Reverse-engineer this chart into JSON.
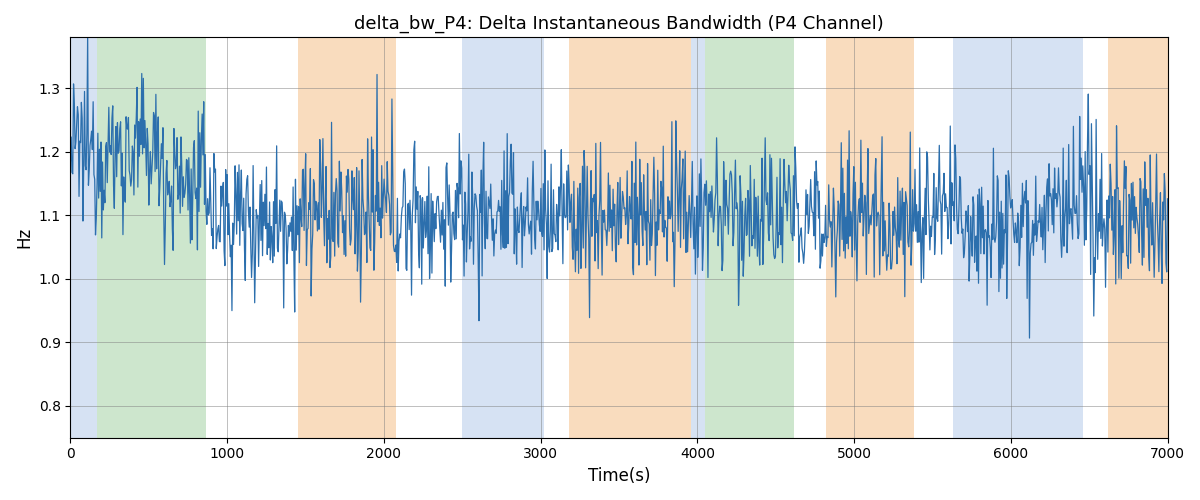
{
  "title": "delta_bw_P4: Delta Instantaneous Bandwidth (P4 Channel)",
  "xlabel": "Time(s)",
  "ylabel": "Hz",
  "xlim": [
    0,
    7000
  ],
  "ylim": [
    0.75,
    1.38
  ],
  "line_color": "#2c6fad",
  "line_width": 0.9,
  "grid": true,
  "background_color": "#ffffff",
  "seed": 12345,
  "colored_bands": [
    {
      "xmin": 0,
      "xmax": 168,
      "color": "#aec6e8",
      "alpha": 0.5
    },
    {
      "xmin": 168,
      "xmax": 868,
      "color": "#90c990",
      "alpha": 0.45
    },
    {
      "xmin": 1450,
      "xmax": 2080,
      "color": "#f5c08a",
      "alpha": 0.55
    },
    {
      "xmin": 2500,
      "xmax": 3020,
      "color": "#aec6e8",
      "alpha": 0.5
    },
    {
      "xmin": 3180,
      "xmax": 3960,
      "color": "#f5c08a",
      "alpha": 0.55
    },
    {
      "xmin": 3960,
      "xmax": 4050,
      "color": "#aec6e8",
      "alpha": 0.5
    },
    {
      "xmin": 4050,
      "xmax": 4620,
      "color": "#90c990",
      "alpha": 0.45
    },
    {
      "xmin": 4820,
      "xmax": 5380,
      "color": "#f5c08a",
      "alpha": 0.55
    },
    {
      "xmin": 5630,
      "xmax": 6460,
      "color": "#aec6e8",
      "alpha": 0.5
    },
    {
      "xmin": 6620,
      "xmax": 7000,
      "color": "#f5c08a",
      "alpha": 0.55
    }
  ],
  "n_points": 1400,
  "segments": [
    {
      "xstart": 0,
      "xend": 600,
      "mean": 1.2,
      "std": 0.065
    },
    {
      "xstart": 600,
      "xend": 900,
      "mean": 1.15,
      "std": 0.065
    },
    {
      "xstart": 900,
      "xend": 7000,
      "mean": 1.1,
      "std": 0.065
    }
  ]
}
